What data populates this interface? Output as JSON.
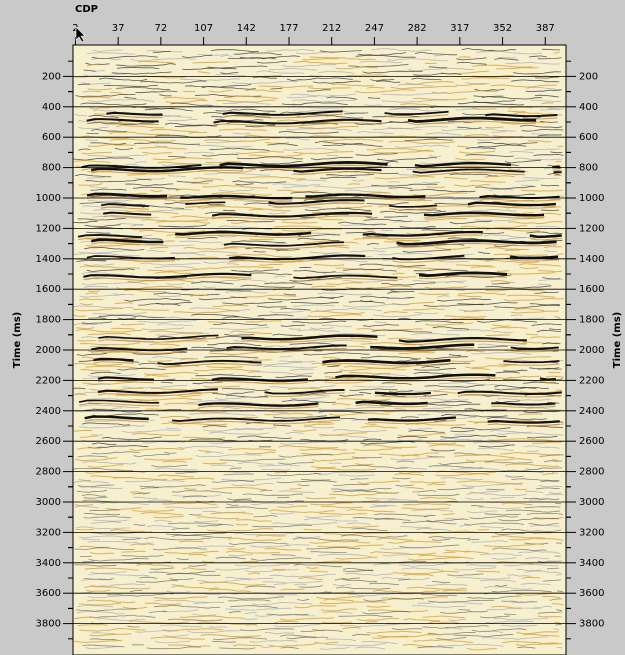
{
  "chart_data": {
    "type": "seismic",
    "x_label": "CDP",
    "y_label": "Time (ms)",
    "xlim": [
      0,
      404
    ],
    "xticks": [
      2,
      37,
      72,
      107,
      142,
      177,
      212,
      247,
      282,
      317,
      352,
      387
    ],
    "ylim": [
      0,
      4000
    ],
    "y_inverted": true,
    "yticks": [
      200,
      400,
      600,
      800,
      1000,
      1200,
      1400,
      1600,
      1800,
      2000,
      2200,
      2400,
      2600,
      2800,
      3000,
      3200,
      3400,
      3600,
      3800
    ],
    "grid": true
  }
}
